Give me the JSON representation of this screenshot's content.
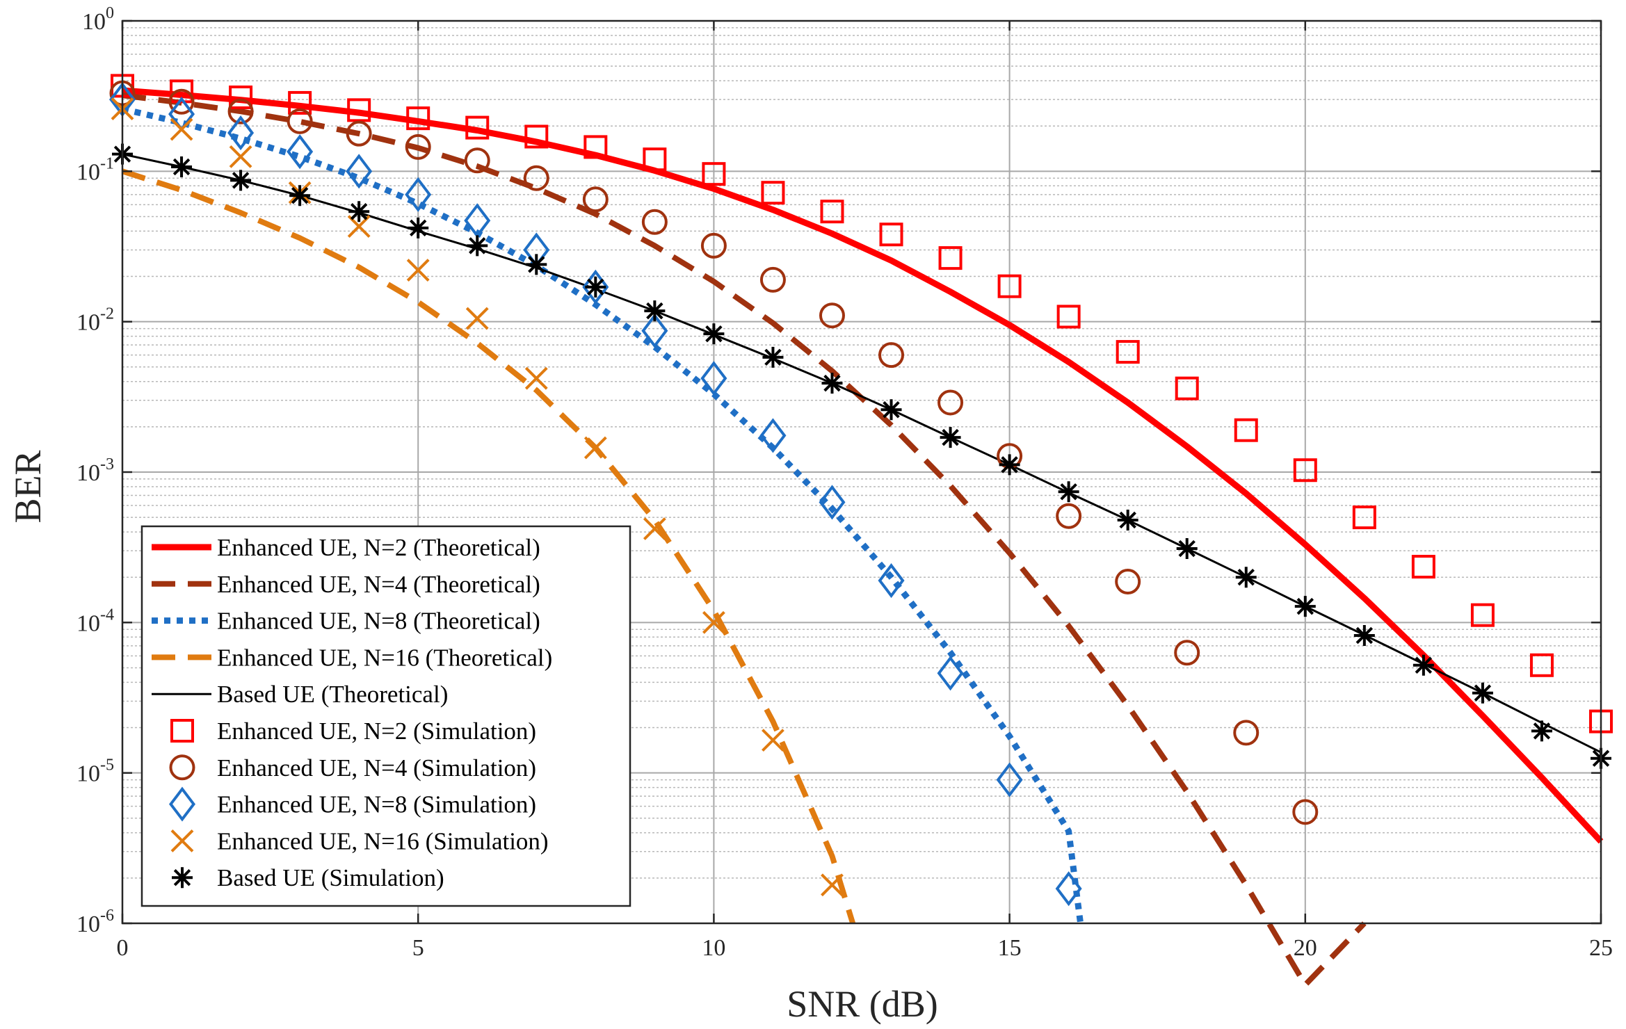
{
  "chart_data": {
    "type": "line",
    "title": "",
    "xlabel": "SNR (dB)",
    "ylabel": "BER",
    "yscale": "log",
    "xlim": [
      0,
      25
    ],
    "ylim": [
      1e-06,
      1
    ],
    "grid": true,
    "minor_grid": true,
    "legend_position": "bottom-left",
    "x_ticks": [
      "0",
      "5",
      "10",
      "15",
      "20",
      "25"
    ],
    "y_ticks": [
      {
        "base": "10",
        "exp": "-6"
      },
      {
        "base": "10",
        "exp": "-5"
      },
      {
        "base": "10",
        "exp": "-4"
      },
      {
        "base": "10",
        "exp": "-3"
      },
      {
        "base": "10",
        "exp": "-2"
      },
      {
        "base": "10",
        "exp": "-1"
      },
      {
        "base": "10",
        "exp": "0"
      }
    ],
    "series": [
      {
        "name": "Enhanced UE, N=2 (Theoretical)",
        "style": "solid",
        "color": "#ff0000",
        "x": [
          0,
          1,
          2,
          3,
          4,
          5,
          6,
          7,
          8,
          9,
          10,
          11,
          12,
          13,
          14,
          15,
          16,
          17,
          18,
          19,
          20,
          21,
          22,
          23,
          24,
          25
        ],
        "values": [
          0.345,
          0.322,
          0.298,
          0.272,
          0.245,
          0.215,
          0.187,
          0.157,
          0.128,
          0.101,
          0.0765,
          0.0555,
          0.0385,
          0.0255,
          0.0158,
          0.0095,
          0.0054,
          0.0029,
          0.00148,
          0.00072,
          0.00033,
          0.000145,
          6.05e-05,
          2.4e-05,
          9.3e-06,
          3.5e-06
        ]
      },
      {
        "name": "Enhanced UE, N=4 (Theoretical)",
        "style": "dashed",
        "color": "#a0320f",
        "x": [
          0,
          1,
          2,
          3,
          4,
          5,
          6,
          7,
          8,
          9,
          10,
          11,
          12,
          13,
          14,
          15,
          16,
          17,
          18,
          19,
          20,
          21
        ],
        "values": [
          0.32,
          0.285,
          0.25,
          0.214,
          0.178,
          0.143,
          0.108,
          0.077,
          0.052,
          0.032,
          0.0185,
          0.0098,
          0.0047,
          0.00205,
          0.00081,
          0.00029,
          9.5e-05,
          2.8e-05,
          7.5e-06,
          1.8e-06,
          3.9e-07,
          1e-06
        ]
      },
      {
        "name": "Enhanced UE, N=8 (Theoretical)",
        "style": "dotted",
        "color": "#1f6fc5",
        "x": [
          0,
          1,
          2,
          3,
          4,
          5,
          6,
          7,
          8,
          9,
          10,
          11,
          12,
          13,
          14,
          15,
          16,
          16.2
        ],
        "values": [
          0.26,
          0.21,
          0.165,
          0.125,
          0.09,
          0.061,
          0.039,
          0.0235,
          0.013,
          0.0068,
          0.0033,
          0.00145,
          0.00057,
          0.0002,
          6.3e-05,
          1.75e-05,
          4.1e-06,
          1e-06
        ]
      },
      {
        "name": "Enhanced UE, N=16 (Theoretical)",
        "style": "dashed",
        "color": "#e07b10",
        "x": [
          0,
          1,
          2,
          3,
          4,
          5,
          6,
          7,
          8,
          9,
          10,
          11,
          12,
          12.35
        ],
        "values": [
          0.1,
          0.075,
          0.053,
          0.036,
          0.023,
          0.0135,
          0.0072,
          0.0035,
          0.00145,
          0.00048,
          0.00012,
          2.2e-05,
          2.8e-06,
          1e-06
        ]
      },
      {
        "name": "Based UE (Theoretical)",
        "style": "solid-thin",
        "color": "#000000",
        "x": [
          0,
          1,
          2,
          3,
          4,
          5,
          6,
          7,
          8,
          9,
          10,
          11,
          12,
          13,
          14,
          15,
          16,
          17,
          18,
          19,
          20,
          21,
          22,
          23,
          24,
          25
        ],
        "values": [
          0.13,
          0.107,
          0.087,
          0.069,
          0.053,
          0.04,
          0.0305,
          0.0228,
          0.0165,
          0.0118,
          0.0082,
          0.0057,
          0.0039,
          0.0026,
          0.0017,
          0.00112,
          0.00073,
          0.00048,
          0.00031,
          0.0002,
          0.000128,
          8.25e-05,
          5.3e-05,
          3.4e-05,
          2.15e-05,
          1.37e-05
        ]
      },
      {
        "name": "Enhanced UE, N=2 (Simulation)",
        "marker": "square",
        "color": "#ff0000",
        "x": [
          0,
          1,
          2,
          3,
          4,
          5,
          6,
          7,
          8,
          9,
          10,
          11,
          12,
          13,
          14,
          15,
          16,
          17,
          18,
          19,
          20,
          21,
          22,
          23,
          24,
          25
        ],
        "values": [
          0.37,
          0.34,
          0.31,
          0.285,
          0.255,
          0.225,
          0.195,
          0.17,
          0.145,
          0.12,
          0.096,
          0.072,
          0.054,
          0.038,
          0.0265,
          0.0172,
          0.0108,
          0.0063,
          0.0036,
          0.0019,
          0.00103,
          0.0005,
          0.000235,
          0.000112,
          5.2e-05,
          2.2e-05
        ]
      },
      {
        "name": "Enhanced UE, N=4 (Simulation)",
        "marker": "circle",
        "color": "#a0320f",
        "x": [
          0,
          1,
          2,
          3,
          4,
          5,
          6,
          7,
          8,
          9,
          10,
          11,
          12,
          13,
          14,
          15,
          16,
          17,
          18,
          19,
          20
        ],
        "values": [
          0.33,
          0.29,
          0.25,
          0.215,
          0.178,
          0.145,
          0.118,
          0.09,
          0.065,
          0.046,
          0.032,
          0.019,
          0.011,
          0.006,
          0.0029,
          0.00128,
          0.00051,
          0.000187,
          6.3e-05,
          1.85e-05,
          5.5e-06
        ]
      },
      {
        "name": "Enhanced UE, N=8 (Simulation)",
        "marker": "diamond",
        "color": "#1f6fc5",
        "x": [
          0,
          1,
          2,
          3,
          4,
          5,
          6,
          7,
          8,
          9,
          10,
          11,
          12,
          13,
          14,
          15,
          16
        ],
        "values": [
          0.3,
          0.24,
          0.18,
          0.135,
          0.1,
          0.07,
          0.047,
          0.03,
          0.017,
          0.0087,
          0.0042,
          0.00175,
          0.00063,
          0.00019,
          4.6e-05,
          9e-06,
          1.7e-06
        ]
      },
      {
        "name": "Enhanced UE, N=16 (Simulation)",
        "marker": "x",
        "color": "#e07b10",
        "x": [
          0,
          1,
          2,
          3,
          4,
          5,
          6,
          7,
          8,
          9,
          10,
          11,
          12
        ],
        "values": [
          0.26,
          0.19,
          0.125,
          0.072,
          0.043,
          0.022,
          0.0105,
          0.0042,
          0.00145,
          0.00042,
          0.0001,
          1.65e-05,
          1.8e-06
        ]
      },
      {
        "name": "Based UE (Simulation)",
        "marker": "asterisk",
        "color": "#000000",
        "x": [
          0,
          1,
          2,
          3,
          4,
          5,
          6,
          7,
          8,
          9,
          10,
          11,
          12,
          13,
          14,
          15,
          16,
          17,
          18,
          19,
          20,
          21,
          22,
          23,
          24,
          25
        ],
        "values": [
          0.13,
          0.107,
          0.087,
          0.069,
          0.054,
          0.042,
          0.032,
          0.024,
          0.017,
          0.0118,
          0.0083,
          0.0058,
          0.0039,
          0.0026,
          0.0017,
          0.00112,
          0.00074,
          0.00048,
          0.00031,
          0.0002,
          0.000128,
          8.2e-05,
          5.2e-05,
          3.4e-05,
          1.9e-05,
          1.25e-05
        ]
      }
    ]
  }
}
